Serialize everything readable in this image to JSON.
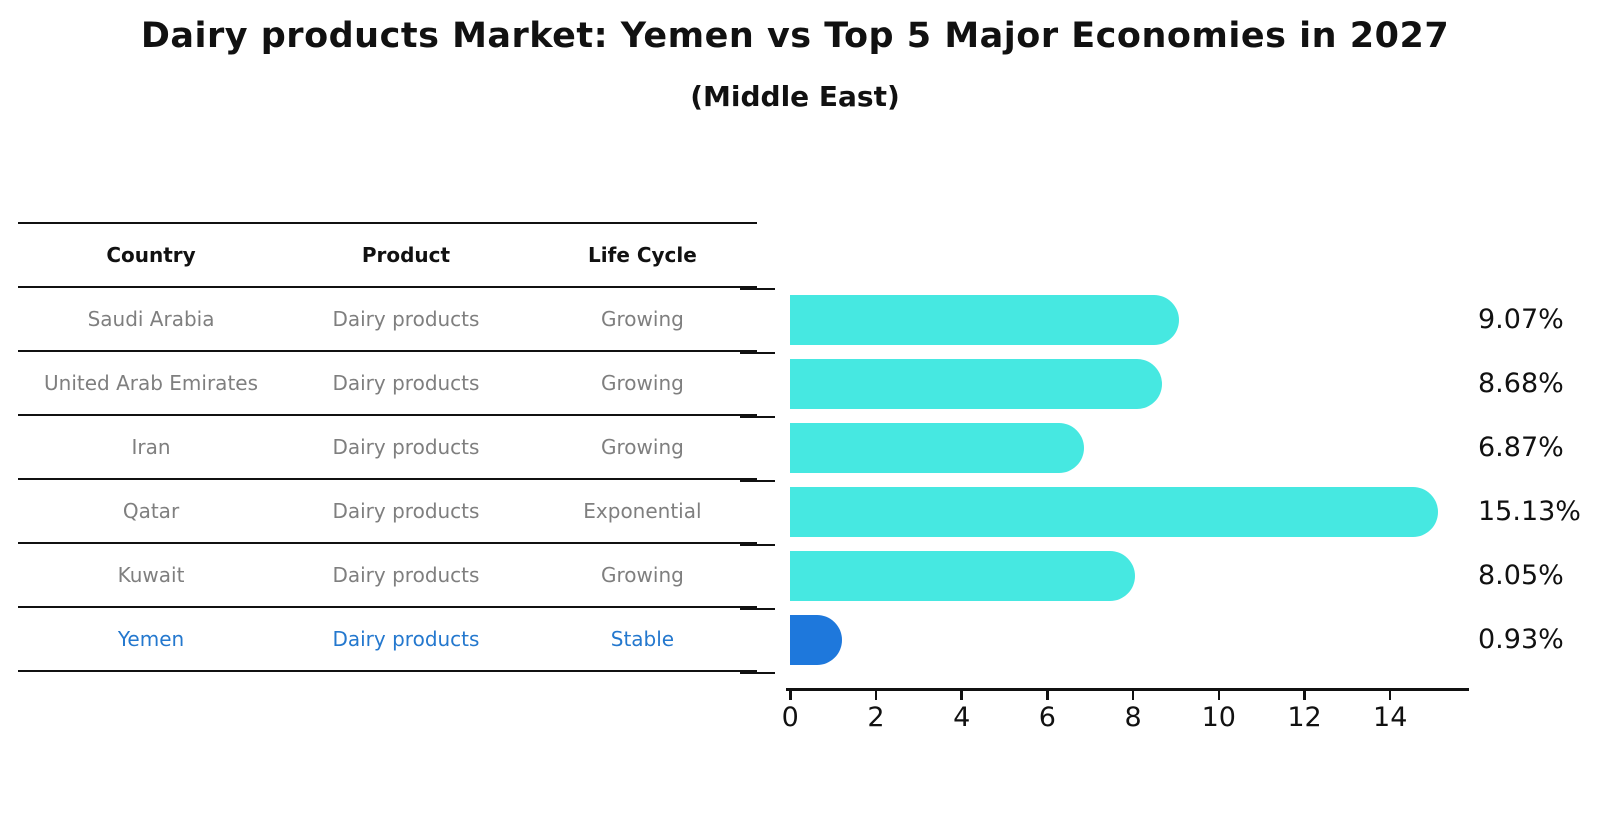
{
  "title": "Dairy products Market: Yemen vs Top 5 Major Economies in 2027",
  "subtitle": "(Middle East)",
  "table": {
    "headers": {
      "country": "Country",
      "product": "Product",
      "life_cycle": "Life Cycle"
    },
    "rows": [
      {
        "country": "Saudi Arabia",
        "product": "Dairy products",
        "life_cycle": "Growing",
        "highlighted": false
      },
      {
        "country": "United Arab Emirates",
        "product": "Dairy products",
        "life_cycle": "Growing",
        "highlighted": false
      },
      {
        "country": "Iran",
        "product": "Dairy products",
        "life_cycle": "Growing",
        "highlighted": false
      },
      {
        "country": "Qatar",
        "product": "Dairy products",
        "life_cycle": "Exponential",
        "highlighted": false
      },
      {
        "country": "Kuwait",
        "product": "Dairy products",
        "life_cycle": "Growing",
        "highlighted": false
      },
      {
        "country": "Yemen",
        "product": "Dairy products",
        "life_cycle": "Stable",
        "highlighted": true
      }
    ]
  },
  "chart_data": {
    "type": "bar",
    "orientation": "horizontal",
    "title": "Dairy products Market: Yemen vs Top 5 Major Economies in 2027 (Middle East)",
    "categories": [
      "Saudi Arabia",
      "United Arab Emirates",
      "Iran",
      "Qatar",
      "Kuwait",
      "Yemen"
    ],
    "values": [
      9.07,
      8.68,
      6.87,
      15.13,
      8.05,
      0.93
    ],
    "labels": [
      "9.07%",
      "8.68%",
      "6.87%",
      "15.13%",
      "8.05%",
      "0.93%"
    ],
    "unit": "%",
    "xlim": [
      0,
      15.75
    ],
    "x_ticks": [
      0,
      2,
      4,
      6,
      8,
      10,
      12,
      14
    ],
    "grid": false,
    "legend": false,
    "highlight_index": 5,
    "bar_color": "#46e8e1",
    "highlight_bar_color": "#1e78dc",
    "highlight_text_color": "#2478ce",
    "table_text_color": "#7f7f7f",
    "axis_color": "#111111"
  }
}
